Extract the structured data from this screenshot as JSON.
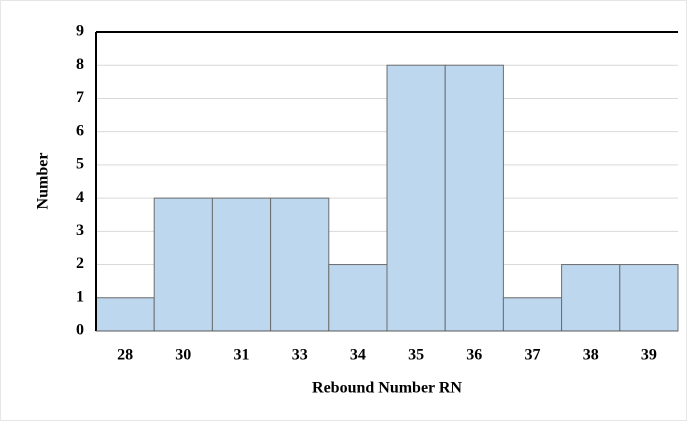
{
  "chart_data": {
    "type": "bar",
    "x_label": "Rebound Number RN",
    "y_label": "Number",
    "categories": [
      "28",
      "30",
      "31",
      "33",
      "34",
      "35",
      "36",
      "37",
      "38",
      "39"
    ],
    "values": [
      1,
      4,
      4,
      4,
      2,
      8,
      8,
      1,
      2,
      2
    ],
    "color": "#bdd7ee",
    "ylim": [
      0,
      9
    ],
    "yticks": [
      0,
      1,
      2,
      3,
      4,
      5,
      6,
      7,
      8,
      9
    ],
    "grid": true
  }
}
